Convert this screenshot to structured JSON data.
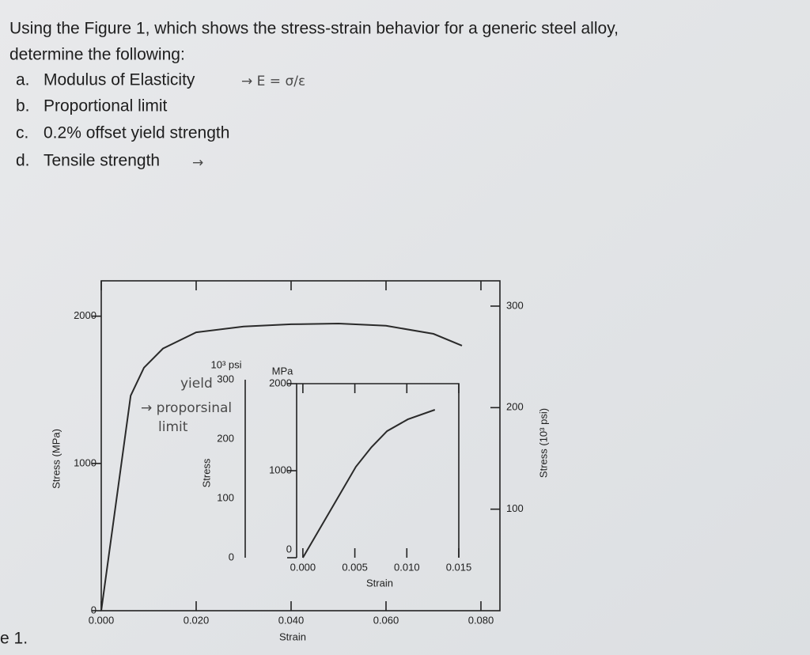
{
  "question": {
    "lines": [
      "Using the Figure 1, which shows the stress-strain behavior for a generic steel alloy,",
      "determine the following:"
    ],
    "items": [
      {
        "letter": "a.",
        "text": "Modulus of Elasticity"
      },
      {
        "letter": "b.",
        "text": "Proportional limit"
      },
      {
        "letter": "c.",
        "text": "0.2% offset yield strength"
      },
      {
        "letter": "d.",
        "text": "Tensile strength"
      }
    ],
    "notes": [
      "→ E = σ/ε",
      "→",
      "yield",
      "→ proporsinal",
      "limit"
    ]
  },
  "figure_caption": "e 1.",
  "chart_data": [
    {
      "type": "line",
      "x_label": "Strain",
      "y_label": "Stress (MPa)",
      "y2_label": "Stress (10³ psi)",
      "x": [
        0,
        0.0062,
        0.009,
        0.013,
        0.02,
        0.03,
        0.04,
        0.05,
        0.06,
        0.07,
        0.076
      ],
      "series": [
        {
          "color": "#2a2a2a",
          "values": [
            0,
            1460,
            1650,
            1780,
            1890,
            1930,
            1945,
            1950,
            1935,
            1880,
            1800
          ]
        }
      ],
      "xlim": [
        0,
        0.084
      ],
      "ylim": [
        0,
        2240
      ],
      "y2lim": [
        0,
        324.9
      ],
      "xticks": [
        {
          "value": 0,
          "label": "0.000"
        },
        {
          "value": 0.02,
          "label": "0.020"
        },
        {
          "value": 0.04,
          "label": "0.040"
        },
        {
          "value": 0.06,
          "label": "0.060"
        },
        {
          "value": 0.08,
          "label": "0.080"
        }
      ],
      "yticks": [
        0,
        1000,
        2000
      ],
      "y2ticks": [
        100,
        200,
        300
      ]
    },
    {
      "type": "line",
      "x_label": "Strain",
      "y_label": "Stress",
      "y_unit": "MPa",
      "y2_unit": "10³ psi",
      "x": [
        0,
        0.0051,
        0.0066,
        0.0081,
        0.0101,
        0.0127
      ],
      "series": [
        {
          "color": "#2a2a2a",
          "values": [
            0,
            1045,
            1270,
            1455,
            1590,
            1700
          ]
        }
      ],
      "xlim": [
        -0.0006,
        0.015
      ],
      "ylim": [
        0,
        2000
      ],
      "y2lim": [
        0,
        300
      ],
      "xticks": [
        {
          "value": 0,
          "label": "0.000"
        },
        {
          "value": 0.005,
          "label": "0.005"
        },
        {
          "value": 0.01,
          "label": "0.010"
        },
        {
          "value": 0.015,
          "label": "0.015"
        }
      ],
      "yticks": [
        0,
        1000,
        2000
      ],
      "y2ticks": [
        0,
        100,
        200,
        300
      ]
    }
  ]
}
